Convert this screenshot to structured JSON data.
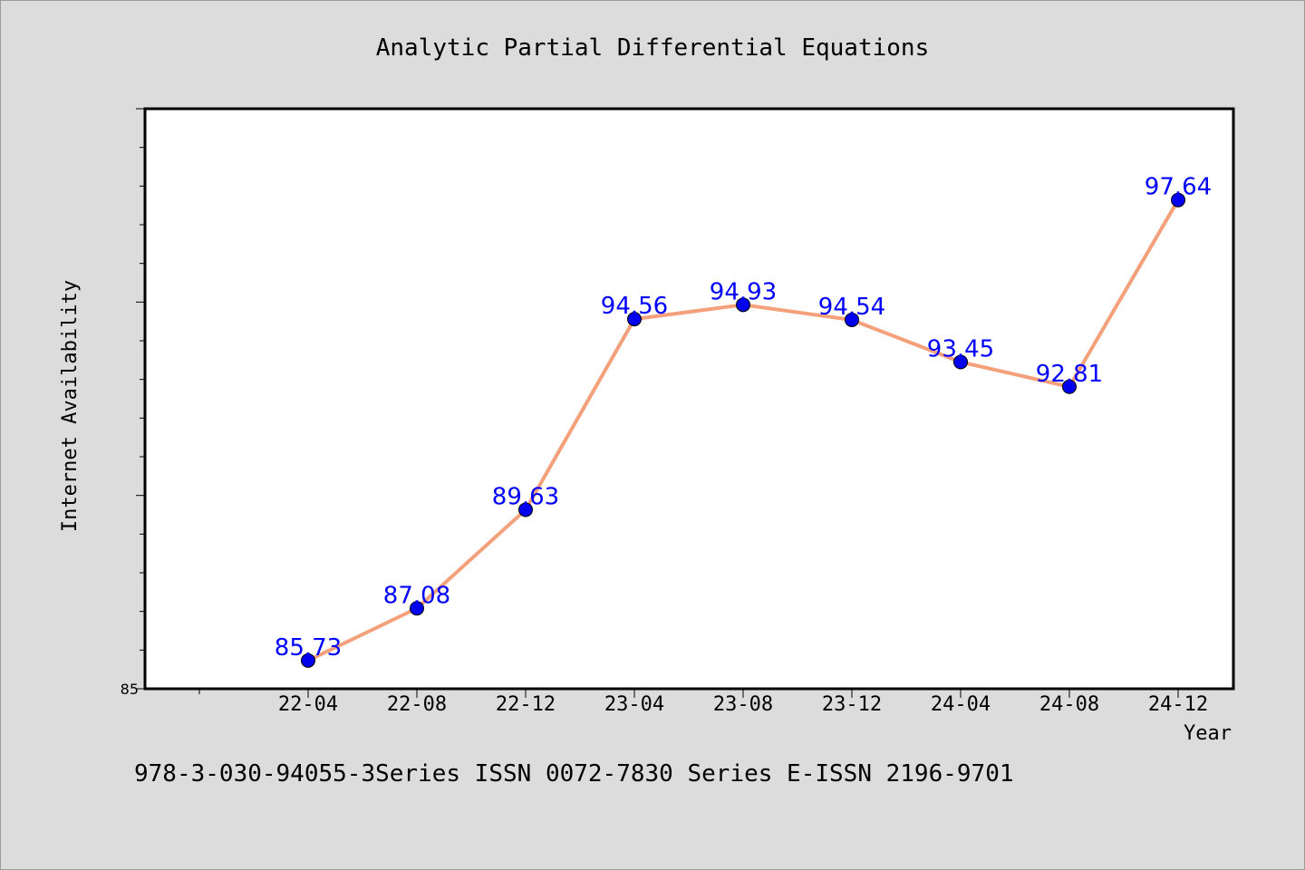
{
  "chart_data": {
    "type": "line",
    "title": "Analytic Partial Differential Equations",
    "xlabel": "Year",
    "ylabel": "Internet Availability",
    "categories": [
      "22-04",
      "22-08",
      "22-12",
      "23-04",
      "23-08",
      "23-12",
      "24-04",
      "24-08",
      "24-12"
    ],
    "series": [
      {
        "values": [
          85.73,
          87.08,
          89.63,
          94.56,
          94.93,
          94.54,
          93.45,
          92.81,
          97.64
        ]
      }
    ],
    "ylim": [
      85,
      100
    ],
    "y_tick_labels": [
      "85"
    ],
    "line_color": "#f4a07a",
    "marker_color": "#0000ee",
    "data_label_color": "#0000ff",
    "grid": false,
    "legend": "none"
  },
  "footer": {
    "text": "978-3-030-94055-3Series ISSN 0072-7830 Series E-ISSN 2196-9701"
  },
  "colors": {
    "background": "#dcdcdc",
    "plot_background": "#ffffff"
  }
}
